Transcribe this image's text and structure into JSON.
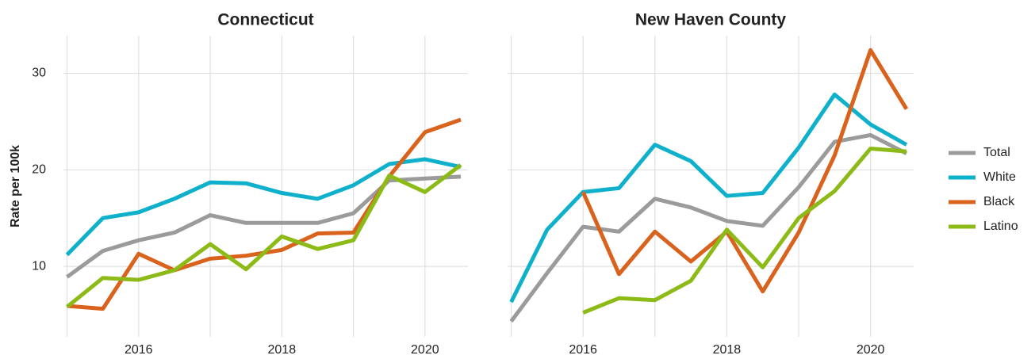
{
  "chart_data": [
    {
      "type": "line",
      "title": "Connecticut",
      "ylabel": "Rate per 100k",
      "x": [
        2015,
        2015.5,
        2016,
        2016.5,
        2017,
        2017.5,
        2018,
        2018.5,
        2019,
        2019.5,
        2020,
        2020.5
      ],
      "series": [
        {
          "name": "Total",
          "color": "#9b9b9b",
          "values": [
            8.9,
            11.6,
            12.7,
            13.5,
            15.3,
            14.5,
            14.5,
            14.5,
            15.5,
            18.9,
            19.1,
            19.3
          ]
        },
        {
          "name": "White",
          "color": "#0fb0cb",
          "values": [
            11.2,
            15.0,
            15.6,
            17.0,
            18.7,
            18.6,
            17.6,
            17.0,
            18.4,
            20.6,
            21.1,
            20.3
          ]
        },
        {
          "name": "Black",
          "color": "#d9621c",
          "values": [
            5.9,
            5.6,
            11.3,
            9.6,
            10.8,
            11.1,
            11.7,
            13.4,
            13.5,
            19.3,
            23.9,
            25.2
          ]
        },
        {
          "name": "Latino",
          "color": "#8cba17",
          "values": [
            5.8,
            8.8,
            8.6,
            9.6,
            12.3,
            9.7,
            13.1,
            11.8,
            12.7,
            19.4,
            17.7,
            20.5
          ]
        }
      ],
      "xlim": [
        2014.95,
        2020.6
      ],
      "xticks": [
        2016,
        2018,
        2020
      ],
      "ylim": [
        2.7,
        33.9
      ],
      "yticks": [
        10,
        20,
        30
      ],
      "grid": true
    },
    {
      "type": "line",
      "title": "New Haven County",
      "x": [
        2015,
        2015.5,
        2016,
        2016.5,
        2017,
        2017.5,
        2018,
        2018.5,
        2019,
        2019.5,
        2020,
        2020.5
      ],
      "series": [
        {
          "name": "Total",
          "color": "#9b9b9b",
          "values": [
            4.3,
            9.3,
            14.1,
            13.6,
            17.0,
            16.1,
            14.7,
            14.2,
            18.2,
            22.9,
            23.6,
            21.7
          ]
        },
        {
          "name": "White",
          "color": "#0fb0cb",
          "values": [
            6.3,
            13.8,
            17.7,
            18.1,
            22.6,
            20.9,
            17.3,
            17.6,
            22.3,
            27.8,
            24.7,
            22.6
          ]
        },
        {
          "name": "Black",
          "color": "#d9621c",
          "values": [
            null,
            null,
            17.7,
            9.2,
            13.6,
            10.5,
            13.6,
            7.4,
            13.5,
            21.5,
            32.4,
            26.3
          ]
        },
        {
          "name": "Latino",
          "color": "#8cba17",
          "values": [
            null,
            null,
            5.2,
            6.7,
            6.5,
            8.5,
            13.8,
            9.9,
            15.0,
            17.8,
            22.2,
            21.9
          ]
        }
      ],
      "xlim": [
        2014.95,
        2020.6
      ],
      "xticks": [
        2016,
        2018,
        2020
      ],
      "ylim": [
        2.7,
        33.9
      ],
      "yticks": [
        10,
        20,
        30
      ],
      "grid": true
    }
  ]
}
